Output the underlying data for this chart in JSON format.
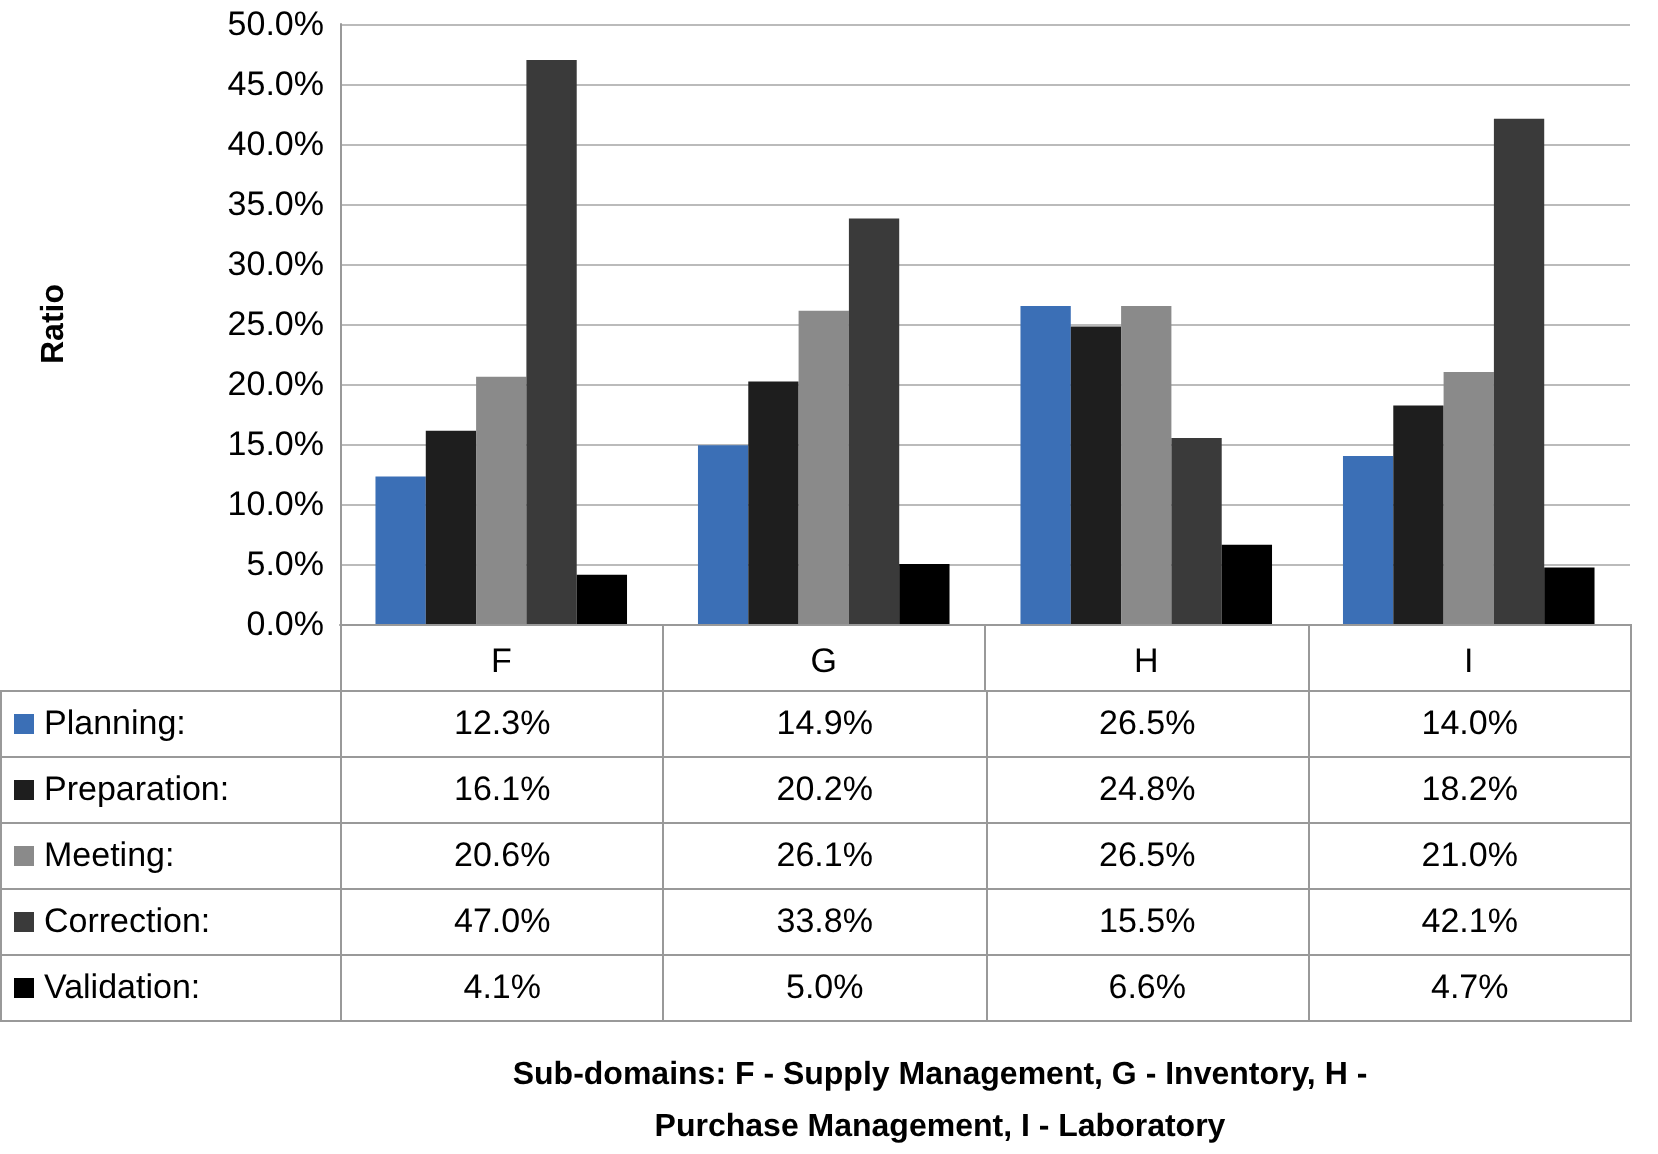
{
  "chart_data": {
    "type": "bar",
    "ylabel": "Ratio",
    "annotations": [
      "Sub-domains: F - Supply Management, G - Inventory, H - Purchase Management, I - Laboratory"
    ],
    "categories": [
      "F",
      "G",
      "H",
      "I"
    ],
    "series": [
      {
        "name": "Planning:",
        "color": "#3b6fb6",
        "values": [
          12.3,
          14.9,
          26.5,
          14.0
        ],
        "value_labels": [
          "12.3%",
          "14.9%",
          "26.5%",
          "14.0%"
        ]
      },
      {
        "name": "Preparation:",
        "color": "#1e1e1e",
        "values": [
          16.1,
          20.2,
          24.8,
          18.2
        ],
        "value_labels": [
          "16.1%",
          "20.2%",
          "24.8%",
          "18.2%"
        ]
      },
      {
        "name": "Meeting:",
        "color": "#8a8a8a",
        "values": [
          20.6,
          26.1,
          26.5,
          21.0
        ],
        "value_labels": [
          "20.6%",
          "26.1%",
          "26.5%",
          "21.0%"
        ]
      },
      {
        "name": "Correction:",
        "color": "#3a3a3a",
        "values": [
          47.0,
          33.8,
          15.5,
          42.1
        ],
        "value_labels": [
          "47.0%",
          "33.8%",
          "15.5%",
          "42.1%"
        ]
      },
      {
        "name": "Validation:",
        "color": "#000000",
        "values": [
          4.1,
          5.0,
          6.6,
          4.7
        ],
        "value_labels": [
          "4.1%",
          "5.0%",
          "6.6%",
          "4.7%"
        ]
      }
    ],
    "ylim": [
      0,
      50
    ],
    "yticks": [
      {
        "value": 0,
        "label": "0.0%"
      },
      {
        "value": 5,
        "label": "5.0%"
      },
      {
        "value": 10,
        "label": "10.0%"
      },
      {
        "value": 15,
        "label": "15.0%"
      },
      {
        "value": 20,
        "label": "20.0%"
      },
      {
        "value": 25,
        "label": "25.0%"
      },
      {
        "value": 30,
        "label": "30.0%"
      },
      {
        "value": 35,
        "label": "35.0%"
      },
      {
        "value": 40,
        "label": "40.0%"
      },
      {
        "value": 45,
        "label": "45.0%"
      },
      {
        "value": 50,
        "label": "50.0%"
      }
    ],
    "grid": "y",
    "legend": "bottom",
    "data_labels": true
  }
}
